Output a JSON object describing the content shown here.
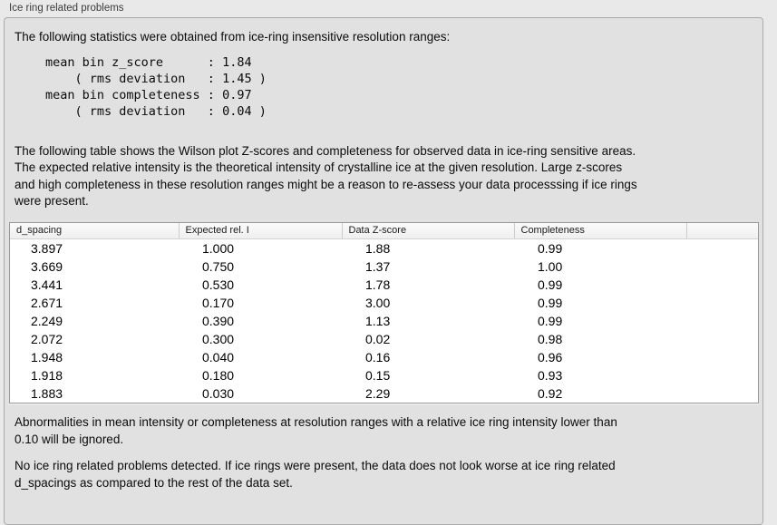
{
  "panel": {
    "title": "Ice ring related problems"
  },
  "intro": "The following statistics were obtained from ice-ring insensitive resolution ranges:",
  "stats_block": "mean bin z_score      : 1.84\n    ( rms deviation   : 1.45 )\nmean bin completeness : 0.97\n    ( rms deviation   : 0.04 )",
  "table_intro": "The following table shows the Wilson plot Z-scores and completeness for observed data in ice-ring sensitive areas.\nThe expected relative intensity is the theoretical intensity of crystalline ice at the given resolution. Large z-scores\nand high completeness in these resolution ranges might be a reason to re-assess your data processsing if ice rings\nwere present.",
  "table": {
    "columns": [
      "d_spacing",
      "Expected rel. I",
      "Data Z-score",
      "Completeness",
      ""
    ],
    "rows": [
      [
        "3.897",
        "1.000",
        "1.88",
        "0.99"
      ],
      [
        "3.669",
        "0.750",
        "1.37",
        "1.00"
      ],
      [
        "3.441",
        "0.530",
        "1.78",
        "0.99"
      ],
      [
        "2.671",
        "0.170",
        "3.00",
        "0.99"
      ],
      [
        "2.249",
        "0.390",
        "1.13",
        "0.99"
      ],
      [
        "2.072",
        "0.300",
        "0.02",
        "0.98"
      ],
      [
        "1.948",
        "0.040",
        "0.16",
        "0.96"
      ],
      [
        "1.918",
        "0.180",
        "0.15",
        "0.93"
      ],
      [
        "1.883",
        "0.030",
        "2.29",
        "0.92"
      ]
    ]
  },
  "note_ignore": "Abnormalities in mean intensity or completeness at resolution ranges with a relative ice ring intensity lower than\n0.10 will be ignored.",
  "conclusion": "No ice ring related problems detected. If ice rings were present, the data does not look worse at ice ring related\nd_spacings as compared to the rest of the data set.",
  "colors": {
    "page_bg": "#e9e9e9",
    "panel_bg": "#e1e1e1",
    "panel_border": "#ababab",
    "table_border": "#989898",
    "table_header_bg": "#f4f4f4"
  }
}
